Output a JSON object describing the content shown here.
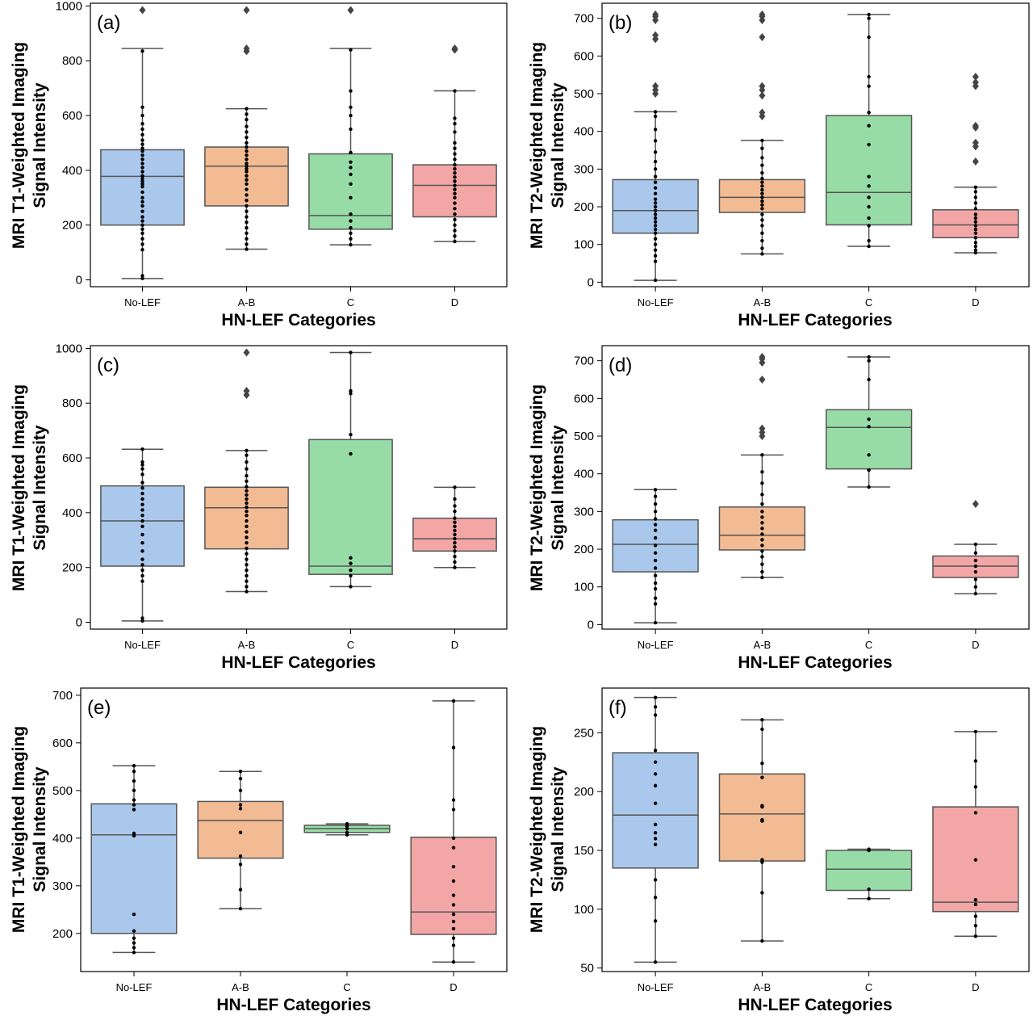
{
  "chart_data": [
    {
      "type": "box",
      "panel_label": "(a)",
      "xlabel": "HN-LEF Categories",
      "ylabel": [
        "MRI T1-Weighted Imaging",
        "Signal Intensity"
      ],
      "ylim": [
        -25,
        1010
      ],
      "yticks": [
        0,
        200,
        400,
        600,
        800,
        1000
      ],
      "categories": [
        "No-LEF",
        "A-B",
        "C",
        "D"
      ],
      "colors": [
        "#aac8ec",
        "#f2bb93",
        "#97dca7",
        "#f2a7a6"
      ],
      "boxes": [
        {
          "whisker_low": 5,
          "q1": 200,
          "median": 378,
          "q3": 475,
          "whisker_high": 845,
          "outliers": [
            985
          ],
          "points": [
            5,
            15,
            110,
            130,
            150,
            170,
            185,
            200,
            215,
            230,
            250,
            270,
            285,
            300,
            320,
            340,
            350,
            360,
            370,
            380,
            395,
            410,
            425,
            440,
            455,
            470,
            480,
            495,
            510,
            530,
            550,
            570,
            600,
            630,
            835
          ]
        },
        {
          "whisker_low": 112,
          "q1": 270,
          "median": 415,
          "q3": 485,
          "whisker_high": 625,
          "outliers": [
            835,
            845,
            985
          ],
          "points": [
            112,
            130,
            150,
            170,
            190,
            210,
            230,
            250,
            270,
            290,
            310,
            330,
            350,
            365,
            380,
            395,
            405,
            415,
            425,
            440,
            455,
            470,
            485,
            500,
            520,
            540,
            560,
            585,
            605,
            625
          ]
        },
        {
          "whisker_low": 128,
          "q1": 185,
          "median": 235,
          "q3": 460,
          "whisker_high": 845,
          "outliers": [
            985
          ],
          "points": [
            128,
            150,
            170,
            190,
            215,
            240,
            300,
            350,
            385,
            410,
            430,
            465,
            550,
            600,
            630,
            690,
            840
          ]
        },
        {
          "whisker_low": 140,
          "q1": 230,
          "median": 345,
          "q3": 420,
          "whisker_high": 690,
          "outliers": [
            840,
            845
          ],
          "points": [
            140,
            160,
            180,
            200,
            220,
            240,
            260,
            280,
            300,
            315,
            330,
            345,
            360,
            375,
            390,
            405,
            420,
            440,
            460,
            480,
            500,
            540,
            570,
            590,
            690
          ]
        }
      ]
    },
    {
      "type": "box",
      "panel_label": "(b)",
      "xlabel": "HN-LEF Categories",
      "ylabel": [
        "MRI T2-Weighted Imaging",
        "Signal Intensity"
      ],
      "ylim": [
        -12,
        740
      ],
      "yticks": [
        0,
        100,
        200,
        300,
        400,
        500,
        600,
        700
      ],
      "categories": [
        "No-LEF",
        "A-B",
        "C",
        "D"
      ],
      "colors": [
        "#aac8ec",
        "#f2bb93",
        "#97dca7",
        "#f2a7a6"
      ],
      "boxes": [
        {
          "whisker_low": 5,
          "q1": 130,
          "median": 190,
          "q3": 272,
          "whisker_high": 452,
          "outliers": [
            500,
            510,
            520,
            645,
            655,
            695,
            705,
            710
          ],
          "points": [
            5,
            55,
            70,
            85,
            100,
            115,
            130,
            140,
            150,
            160,
            170,
            180,
            190,
            200,
            210,
            220,
            235,
            250,
            265,
            280,
            300,
            320,
            345,
            375,
            405,
            440,
            452
          ]
        },
        {
          "whisker_low": 75,
          "q1": 185,
          "median": 225,
          "q3": 272,
          "whisker_high": 376,
          "outliers": [
            440,
            450,
            495,
            510,
            520,
            650,
            695,
            705,
            710
          ],
          "points": [
            75,
            90,
            110,
            130,
            150,
            165,
            180,
            195,
            205,
            215,
            225,
            235,
            245,
            255,
            265,
            275,
            290,
            310,
            330,
            355,
            376
          ]
        },
        {
          "whisker_low": 95,
          "q1": 152,
          "median": 238,
          "q3": 442,
          "whisker_high": 710,
          "outliers": [],
          "points": [
            95,
            110,
            150,
            170,
            200,
            225,
            255,
            280,
            365,
            415,
            450,
            520,
            545,
            650,
            700,
            710
          ]
        },
        {
          "whisker_low": 78,
          "q1": 118,
          "median": 152,
          "q3": 192,
          "whisker_high": 252,
          "outliers": [
            320,
            360,
            370,
            410,
            415,
            520,
            530,
            545
          ],
          "points": [
            78,
            85,
            95,
            105,
            118,
            130,
            140,
            150,
            160,
            170,
            180,
            195,
            210,
            225,
            240,
            252
          ]
        }
      ]
    },
    {
      "type": "box",
      "panel_label": "(c)",
      "xlabel": "HN-LEF Categories",
      "ylabel": [
        "MRI T1-Weighted Imaging",
        "Signal Intensity"
      ],
      "ylim": [
        -25,
        1010
      ],
      "yticks": [
        0,
        200,
        400,
        600,
        800,
        1000
      ],
      "categories": [
        "No-LEF",
        "A-B",
        "C",
        "D"
      ],
      "colors": [
        "#aac8ec",
        "#f2bb93",
        "#97dca7",
        "#f2a7a6"
      ],
      "boxes": [
        {
          "whisker_low": 5,
          "q1": 205,
          "median": 370,
          "q3": 498,
          "whisker_high": 632,
          "outliers": [],
          "points": [
            5,
            15,
            150,
            170,
            190,
            210,
            230,
            260,
            290,
            320,
            350,
            370,
            390,
            410,
            430,
            450,
            470,
            490,
            510,
            540,
            560,
            575,
            585,
            632
          ]
        },
        {
          "whisker_low": 112,
          "q1": 268,
          "median": 418,
          "q3": 493,
          "whisker_high": 627,
          "outliers": [
            830,
            845,
            985
          ],
          "points": [
            112,
            130,
            150,
            170,
            190,
            210,
            230,
            250,
            270,
            290,
            310,
            330,
            350,
            370,
            390,
            405,
            420,
            435,
            450,
            465,
            480,
            495,
            515,
            535,
            560,
            585,
            610,
            627
          ]
        },
        {
          "whisker_low": 130,
          "q1": 175,
          "median": 205,
          "q3": 667,
          "whisker_high": 985,
          "outliers": [],
          "points": [
            130,
            170,
            190,
            215,
            235,
            615,
            685,
            835,
            845,
            985
          ]
        },
        {
          "whisker_low": 200,
          "q1": 260,
          "median": 305,
          "q3": 380,
          "whisker_high": 493,
          "outliers": [],
          "points": [
            200,
            220,
            240,
            260,
            275,
            290,
            305,
            320,
            335,
            350,
            365,
            380,
            405,
            425,
            450,
            493
          ]
        }
      ]
    },
    {
      "type": "box",
      "panel_label": "(d)",
      "xlabel": "HN-LEF Categories",
      "ylabel": [
        "MRI T2-Weighted Imaging",
        "Signal Intensity"
      ],
      "ylim": [
        -12,
        740
      ],
      "yticks": [
        0,
        100,
        200,
        300,
        400,
        500,
        600,
        700
      ],
      "categories": [
        "No-LEF",
        "A-B",
        "C",
        "D"
      ],
      "colors": [
        "#aac8ec",
        "#f2bb93",
        "#97dca7",
        "#f2a7a6"
      ],
      "boxes": [
        {
          "whisker_low": 5,
          "q1": 140,
          "median": 213,
          "q3": 278,
          "whisker_high": 358,
          "outliers": [],
          "points": [
            5,
            55,
            70,
            95,
            110,
            130,
            150,
            170,
            190,
            210,
            230,
            250,
            265,
            280,
            300,
            320,
            340,
            358
          ]
        },
        {
          "whisker_low": 125,
          "q1": 198,
          "median": 237,
          "q3": 312,
          "whisker_high": 450,
          "outliers": [
            500,
            510,
            520,
            650,
            695,
            705,
            710
          ],
          "points": [
            125,
            140,
            160,
            180,
            195,
            210,
            225,
            240,
            255,
            270,
            285,
            300,
            320,
            345,
            375,
            405,
            450
          ]
        },
        {
          "whisker_low": 365,
          "q1": 413,
          "median": 523,
          "q3": 570,
          "whisker_high": 710,
          "outliers": [],
          "points": [
            365,
            410,
            450,
            525,
            545,
            650,
            700,
            710
          ]
        },
        {
          "whisker_low": 82,
          "q1": 125,
          "median": 155,
          "q3": 182,
          "whisker_high": 213,
          "outliers": [
            320
          ],
          "points": [
            82,
            100,
            120,
            140,
            155,
            170,
            190,
            213
          ]
        }
      ]
    },
    {
      "type": "box",
      "panel_label": "(e)",
      "xlabel": "HN-LEF Categories",
      "ylabel": [
        "MRI T1-Weighted Imaging",
        "Signal Intensity"
      ],
      "ylim": [
        120,
        715
      ],
      "yticks": [
        200,
        300,
        400,
        500,
        600,
        700
      ],
      "categories": [
        "No-LEF",
        "A-B",
        "C",
        "D"
      ],
      "colors": [
        "#aac8ec",
        "#f2bb93",
        "#97dca7",
        "#f2a7a6"
      ],
      "boxes": [
        {
          "whisker_low": 160,
          "q1": 200,
          "median": 407,
          "q3": 472,
          "whisker_high": 552,
          "outliers": [],
          "points": [
            160,
            170,
            180,
            190,
            205,
            240,
            405,
            410,
            460,
            470,
            480,
            500,
            520,
            540,
            552
          ]
        },
        {
          "whisker_low": 252,
          "q1": 358,
          "median": 437,
          "q3": 477,
          "whisker_high": 540,
          "outliers": [],
          "points": [
            252,
            292,
            345,
            362,
            412,
            462,
            470,
            500,
            525,
            540
          ]
        },
        {
          "whisker_low": 407,
          "q1": 412,
          "median": 420,
          "q3": 427,
          "whisker_high": 430,
          "outliers": [],
          "points": [
            407,
            412,
            420,
            425,
            430
          ]
        },
        {
          "whisker_low": 140,
          "q1": 198,
          "median": 245,
          "q3": 402,
          "whisker_high": 688,
          "outliers": [],
          "points": [
            140,
            175,
            190,
            210,
            225,
            240,
            260,
            280,
            310,
            340,
            380,
            400,
            460,
            480,
            590,
            688
          ]
        }
      ]
    },
    {
      "type": "box",
      "panel_label": "(f)",
      "xlabel": "HN-LEF Categories",
      "ylabel": [
        "MRI T2-Weighted Imaging",
        "Signal Intensity"
      ],
      "ylim": [
        47,
        288
      ],
      "yticks": [
        50,
        100,
        150,
        200,
        250
      ],
      "categories": [
        "No-LEF",
        "A-B",
        "C",
        "D"
      ],
      "colors": [
        "#aac8ec",
        "#f2bb93",
        "#97dca7",
        "#f2a7a6"
      ],
      "boxes": [
        {
          "whisker_low": 55,
          "q1": 135,
          "median": 180,
          "q3": 233,
          "whisker_high": 280,
          "outliers": [],
          "points": [
            55,
            90,
            110,
            125,
            155,
            160,
            165,
            172,
            190,
            205,
            215,
            225,
            235,
            265,
            272,
            280
          ]
        },
        {
          "whisker_low": 73,
          "q1": 141,
          "median": 181,
          "q3": 215,
          "whisker_high": 261,
          "outliers": [],
          "points": [
            73,
            114,
            140,
            142,
            175,
            176,
            187,
            188,
            212,
            224,
            253,
            261
          ]
        },
        {
          "whisker_low": 109,
          "q1": 116,
          "median": 134,
          "q3": 150,
          "whisker_high": 151,
          "outliers": [],
          "points": [
            109,
            117,
            150,
            151
          ]
        },
        {
          "whisker_low": 77,
          "q1": 98,
          "median": 106,
          "q3": 187,
          "whisker_high": 251,
          "outliers": [],
          "points": [
            77,
            86,
            94,
            104,
            108,
            142,
            182,
            204,
            226,
            251
          ]
        }
      ]
    }
  ]
}
